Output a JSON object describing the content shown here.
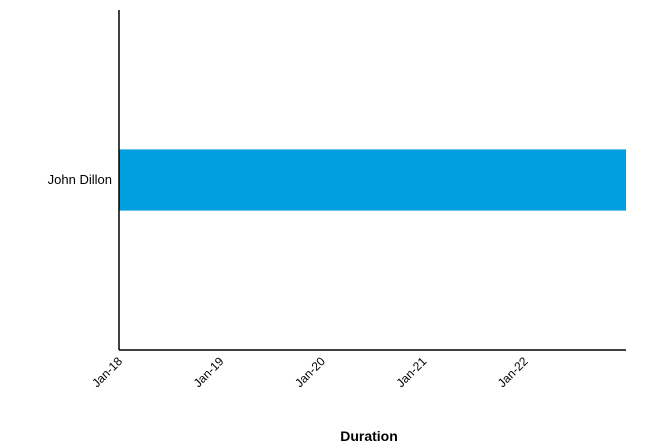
{
  "chart_data": {
    "type": "bar",
    "orientation": "horizontal",
    "categories": [
      "John Dillon"
    ],
    "series": [
      {
        "values": [
          {
            "start": "Jan-18",
            "end": "Dec-22"
          }
        ],
        "color": "#009FDF"
      }
    ],
    "xlabel": "Duration",
    "ylabel": "",
    "x_ticks": [
      "Jan-18",
      "Jan-19",
      "Jan-20",
      "Jan-21",
      "Jan-22"
    ],
    "xlim": [
      "Jan-18",
      "Jan-23"
    ],
    "grid": false,
    "legend": "none"
  }
}
